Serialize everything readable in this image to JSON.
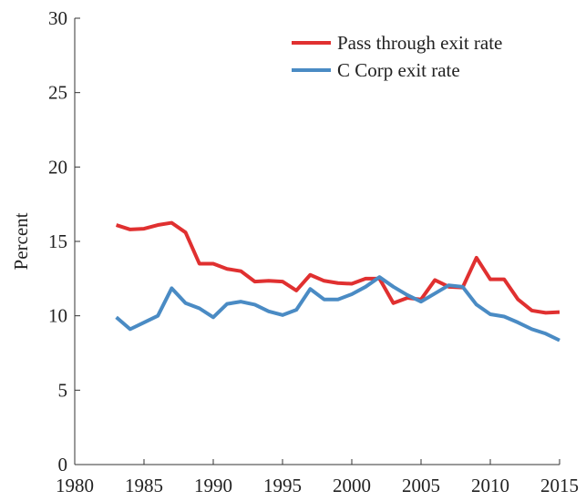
{
  "chart_data": {
    "type": "line",
    "y_label": "Percent",
    "x": [
      1983,
      1984,
      1985,
      1986,
      1987,
      1988,
      1989,
      1990,
      1991,
      1992,
      1993,
      1994,
      1995,
      1996,
      1997,
      1998,
      1999,
      2000,
      2001,
      2002,
      2003,
      2004,
      2005,
      2006,
      2007,
      2008,
      2009,
      2010,
      2011,
      2012,
      2013,
      2014,
      2015
    ],
    "series": [
      {
        "name": "Pass through exit rate",
        "color": "#e03030",
        "values": [
          16.1,
          15.8,
          15.85,
          16.1,
          16.25,
          15.6,
          13.5,
          13.5,
          13.15,
          13.0,
          12.3,
          12.35,
          12.3,
          11.7,
          12.75,
          12.35,
          12.2,
          12.15,
          12.5,
          12.5,
          10.85,
          11.2,
          11.1,
          12.4,
          11.95,
          11.9,
          13.9,
          12.45,
          12.45,
          11.1,
          10.35,
          10.2,
          10.25
        ]
      },
      {
        "name": "C Corp exit rate",
        "color": "#4a8bc4",
        "values": [
          9.9,
          9.1,
          9.55,
          10.0,
          11.85,
          10.85,
          10.5,
          9.9,
          10.8,
          10.95,
          10.75,
          10.3,
          10.05,
          10.4,
          11.8,
          11.1,
          11.1,
          11.45,
          11.95,
          12.6,
          11.95,
          11.4,
          10.95,
          11.5,
          12.05,
          11.95,
          10.75,
          10.1,
          9.95,
          9.55,
          9.1,
          8.8,
          8.35
        ]
      }
    ],
    "xlim": [
      1980,
      2015
    ],
    "xticks": [
      1980,
      1985,
      1990,
      1995,
      2000,
      2005,
      2010,
      2015
    ],
    "ylim": [
      0,
      30
    ],
    "yticks": [
      0,
      5,
      10,
      15,
      20,
      25,
      30
    ],
    "legend": "upper right"
  }
}
